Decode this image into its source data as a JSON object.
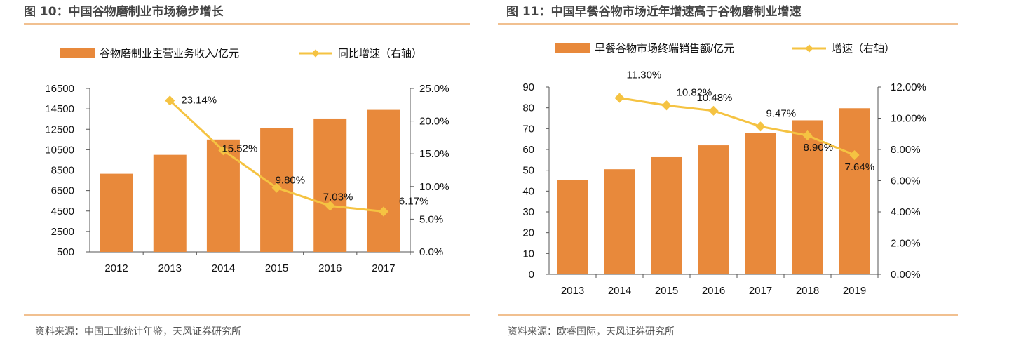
{
  "colors": {
    "bar": "#e8893b",
    "line": "#f5c342",
    "rule": "#f1c090",
    "axis": "#555555"
  },
  "icons": {
    "legend_bar": "orange-rectangle-swatch",
    "legend_line": "yellow-line-with-diamond-marker"
  },
  "figures": [
    {
      "title": "图 10：中国谷物磨制业市场稳步增长",
      "source": "资料来源：中国工业统计年鉴，天风证券研究所"
    },
    {
      "title": "图 11：中国早餐谷物市场近年增速高于谷物磨制业增速",
      "source": "资料来源：欧睿国际，天风证券研究所"
    }
  ],
  "chart_data": [
    {
      "type": "bar+line",
      "categories": [
        "2012",
        "2013",
        "2014",
        "2015",
        "2016",
        "2017"
      ],
      "series": [
        {
          "name": "谷物磨制业主营业务收入/亿元",
          "type": "bar",
          "axis": "left",
          "values": [
            8150,
            10000,
            11500,
            12650,
            13550,
            14400
          ]
        },
        {
          "name": "同比增速（右轴）",
          "type": "line",
          "axis": "right",
          "values": [
            null,
            23.14,
            15.52,
            9.8,
            7.03,
            6.17
          ],
          "labels": [
            "",
            "23.14%",
            "15.52%",
            "9.80%",
            "7.03%",
            "6.17%"
          ]
        }
      ],
      "y_left": {
        "ylim": [
          500,
          16500
        ],
        "ticks": [
          500,
          2500,
          4500,
          6500,
          8500,
          10500,
          12500,
          14500,
          16500
        ],
        "tick_labels": [
          "500",
          "2500",
          "4500",
          "6500",
          "8500",
          "10500",
          "12500",
          "14500",
          "16500"
        ]
      },
      "y_right": {
        "ylim": [
          0,
          25
        ],
        "ticks": [
          0,
          5,
          10,
          15,
          20,
          25
        ],
        "tick_labels": [
          "0.0%",
          "5.0%",
          "10.0%",
          "15.0%",
          "20.0%",
          "25.0%"
        ]
      },
      "grid": false,
      "legend": "top"
    },
    {
      "type": "bar+line",
      "categories": [
        "2013",
        "2014",
        "2015",
        "2016",
        "2017",
        "2018",
        "2019"
      ],
      "series": [
        {
          "name": "早餐谷物市场终端销售额/亿元",
          "type": "bar",
          "axis": "left",
          "values": [
            45.5,
            50.5,
            56.3,
            62.0,
            68.0,
            74.0,
            79.8
          ]
        },
        {
          "name": "增速（右轴）",
          "type": "line",
          "axis": "right",
          "values": [
            null,
            11.3,
            10.82,
            10.48,
            9.47,
            8.9,
            7.64
          ],
          "labels": [
            "",
            "11.30%",
            "10.82%",
            "10.48%",
            "9.47%",
            "8.90%",
            "7.64%"
          ]
        }
      ],
      "y_left": {
        "ylim": [
          0,
          90
        ],
        "ticks": [
          0,
          10,
          20,
          30,
          40,
          50,
          60,
          70,
          80,
          90
        ],
        "tick_labels": [
          "0",
          "10",
          "20",
          "30",
          "40",
          "50",
          "60",
          "70",
          "80",
          "90"
        ]
      },
      "y_right": {
        "ylim": [
          0,
          12
        ],
        "ticks": [
          0,
          2,
          4,
          6,
          8,
          10,
          12
        ],
        "tick_labels": [
          "0.00%",
          "2.00%",
          "4.00%",
          "6.00%",
          "8.00%",
          "10.00%",
          "12.00%"
        ]
      },
      "grid": false,
      "legend": "top"
    }
  ]
}
